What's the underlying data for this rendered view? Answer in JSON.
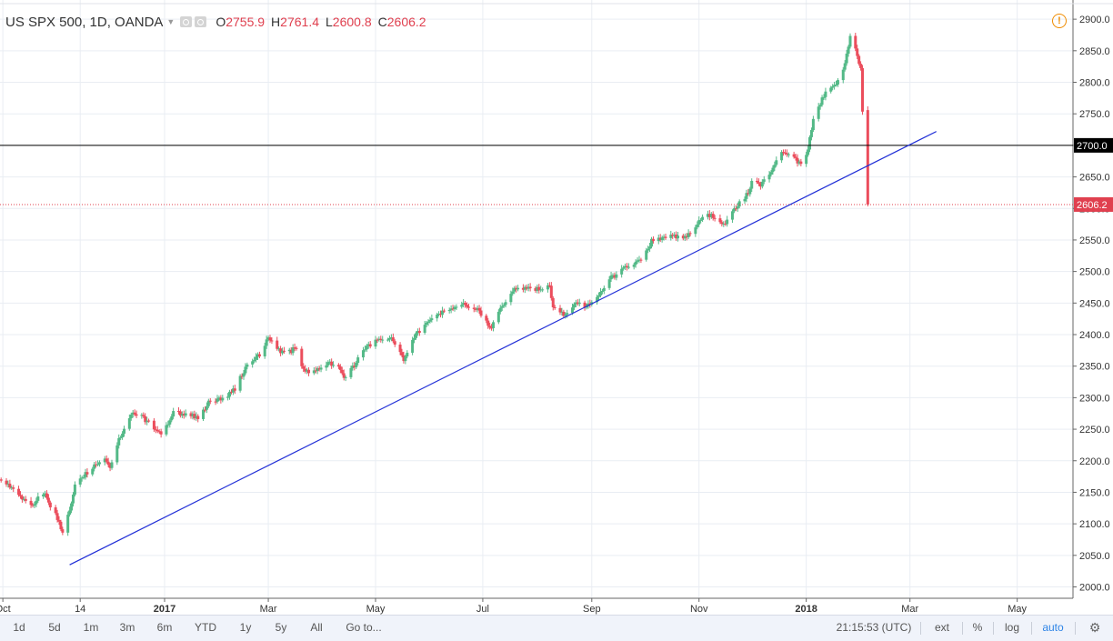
{
  "header": {
    "symbol": "US SPX 500, 1D, OANDA",
    "open_label": "O",
    "open_value": "2755.9",
    "high_label": "H",
    "high_value": "2761.4",
    "low_label": "L",
    "low_value": "2600.8",
    "close_label": "C",
    "close_value": "2606.2"
  },
  "chart_data": {
    "type": "candlestick",
    "title": "US SPX 500, 1D, OANDA",
    "ylim": [
      1980,
      2920
    ],
    "y_ticks": [
      "2000.0",
      "2050.0",
      "2100.0",
      "2150.0",
      "2200.0",
      "2250.0",
      "2300.0",
      "2350.0",
      "2400.0",
      "2450.0",
      "2500.0",
      "2550.0",
      "2600.0",
      "2650.0",
      "2700.0",
      "2750.0",
      "2800.0",
      "2850.0",
      "2900.0"
    ],
    "x_ticks": [
      {
        "label": "Oct",
        "date": "2016-10-01"
      },
      {
        "label": "14",
        "date": "2016-11-14"
      },
      {
        "label": "2017",
        "date": "2017-01-01"
      },
      {
        "label": "Mar",
        "date": "2017-03-01"
      },
      {
        "label": "May",
        "date": "2017-05-01"
      },
      {
        "label": "Jul",
        "date": "2017-07-01"
      },
      {
        "label": "Sep",
        "date": "2017-09-01"
      },
      {
        "label": "Nov",
        "date": "2017-11-01"
      },
      {
        "label": "2018",
        "date": "2018-01-01"
      },
      {
        "label": "Mar",
        "date": "2018-03-01"
      },
      {
        "label": "May",
        "date": "2018-05-01"
      }
    ],
    "price_path": [
      [
        "2016-09-30",
        2168
      ],
      [
        "2016-10-06",
        2158
      ],
      [
        "2016-10-12",
        2140
      ],
      [
        "2016-10-18",
        2130
      ],
      [
        "2016-10-24",
        2150
      ],
      [
        "2016-10-28",
        2130
      ],
      [
        "2016-11-01",
        2108
      ],
      [
        "2016-11-04",
        2085
      ],
      [
        "2016-11-09",
        2135
      ],
      [
        "2016-11-11",
        2165
      ],
      [
        "2016-11-18",
        2182
      ],
      [
        "2016-11-28",
        2205
      ],
      [
        "2016-12-01",
        2192
      ],
      [
        "2016-12-07",
        2240
      ],
      [
        "2016-12-13",
        2275
      ],
      [
        "2016-12-20",
        2268
      ],
      [
        "2016-12-30",
        2240
      ],
      [
        "2017-01-06",
        2276
      ],
      [
        "2017-01-20",
        2270
      ],
      [
        "2017-01-27",
        2295
      ],
      [
        "2017-02-03",
        2298
      ],
      [
        "2017-02-10",
        2315
      ],
      [
        "2017-02-17",
        2352
      ],
      [
        "2017-02-24",
        2368
      ],
      [
        "2017-03-01",
        2396
      ],
      [
        "2017-03-07",
        2375
      ],
      [
        "2017-03-13",
        2372
      ],
      [
        "2017-03-17",
        2380
      ],
      [
        "2017-03-21",
        2345
      ],
      [
        "2017-03-27",
        2340
      ],
      [
        "2017-04-03",
        2355
      ],
      [
        "2017-04-10",
        2350
      ],
      [
        "2017-04-13",
        2330
      ],
      [
        "2017-04-20",
        2355
      ],
      [
        "2017-04-24",
        2375
      ],
      [
        "2017-05-01",
        2390
      ],
      [
        "2017-05-10",
        2395
      ],
      [
        "2017-05-17",
        2360
      ],
      [
        "2017-05-22",
        2395
      ],
      [
        "2017-05-31",
        2420
      ],
      [
        "2017-06-09",
        2438
      ],
      [
        "2017-06-19",
        2450
      ],
      [
        "2017-06-28",
        2440
      ],
      [
        "2017-07-06",
        2410
      ],
      [
        "2017-07-12",
        2445
      ],
      [
        "2017-07-20",
        2475
      ],
      [
        "2017-07-27",
        2472
      ],
      [
        "2017-08-08",
        2476
      ],
      [
        "2017-08-10",
        2440
      ],
      [
        "2017-08-17",
        2430
      ],
      [
        "2017-08-22",
        2450
      ],
      [
        "2017-08-29",
        2446
      ],
      [
        "2017-09-05",
        2460
      ],
      [
        "2017-09-11",
        2488
      ],
      [
        "2017-09-20",
        2505
      ],
      [
        "2017-09-29",
        2518
      ],
      [
        "2017-10-05",
        2548
      ],
      [
        "2017-10-16",
        2556
      ],
      [
        "2017-10-25",
        2555
      ],
      [
        "2017-11-01",
        2580
      ],
      [
        "2017-11-08",
        2591
      ],
      [
        "2017-11-15",
        2575
      ],
      [
        "2017-11-21",
        2598
      ],
      [
        "2017-11-29",
        2625
      ],
      [
        "2017-12-01",
        2644
      ],
      [
        "2017-12-06",
        2636
      ],
      [
        "2017-12-12",
        2660
      ],
      [
        "2017-12-18",
        2688
      ],
      [
        "2017-12-22",
        2684
      ],
      [
        "2017-12-29",
        2670
      ],
      [
        "2018-01-02",
        2694
      ],
      [
        "2018-01-05",
        2742
      ],
      [
        "2018-01-12",
        2786
      ],
      [
        "2018-01-18",
        2800
      ],
      [
        "2018-01-22",
        2820
      ],
      [
        "2018-01-26",
        2870
      ],
      [
        "2018-01-29",
        2852
      ],
      [
        "2018-02-01",
        2820
      ],
      [
        "2018-02-02",
        2755
      ],
      [
        "2018-02-05",
        2606
      ]
    ],
    "current_price": "2606.2",
    "current_price_value": 2606.2,
    "horizontal_line": {
      "value": 2700.0,
      "label": "2700.0"
    },
    "trendline": {
      "from": [
        "2016-11-08",
        2035
      ],
      "to": [
        "2018-03-16",
        2722
      ]
    },
    "colors": {
      "up": "#53b987",
      "down": "#eb4d5c",
      "trend": "#1e2cd6",
      "hline": "#000000",
      "price": "#e0404f"
    }
  },
  "toolbar": {
    "ranges": [
      "1d",
      "5d",
      "1m",
      "3m",
      "6m",
      "YTD",
      "1y",
      "5y",
      "All"
    ],
    "goto": "Go to...",
    "time": "21:15:53 (UTC)",
    "ext": "ext",
    "percent": "%",
    "log": "log",
    "auto": "auto",
    "settings_icon": "gear-icon",
    "accent": "#2e84e6"
  }
}
